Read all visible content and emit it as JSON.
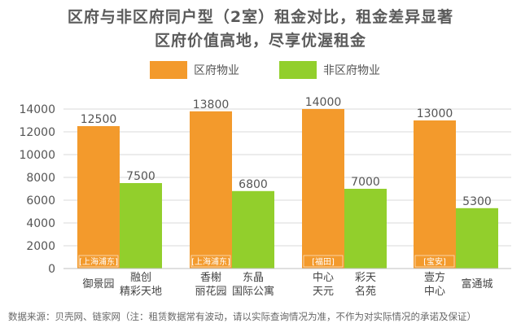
{
  "title_line1": "区府与非区府同户型（2室）租金对比，租金差异显著",
  "title_line2": "区府价值高地，尽享优渥租金",
  "source_note": "数据来源：贝壳网、链家网（注：租赁数据常有波动，请以实际查询情况为准，不作为对实际情况的承诺及保证）",
  "colors": {
    "orange": "#f39a2c",
    "green": "#92cf2c",
    "tag_bg": "#f7b86a",
    "grid": "#d9d9d9"
  },
  "chart_data": {
    "type": "bar",
    "title": "区府与非区府同户型（2室）租金对比，租金差异显著",
    "ylim": [
      0,
      14000
    ],
    "yticks": [
      0,
      2000,
      4000,
      6000,
      8000,
      10000,
      12000,
      14000
    ],
    "grid": true,
    "legend_position": "top",
    "series": [
      {
        "name": "区府物业",
        "values": [
          12500,
          13800,
          14000,
          13000
        ]
      },
      {
        "name": "非区府物业",
        "values": [
          7500,
          6800,
          7000,
          5300
        ]
      }
    ],
    "groups": [
      {
        "district": "[上海浦东]",
        "labels": [
          "御景园",
          "融创\n精彩天地"
        ]
      },
      {
        "district": "[上海浦东]",
        "labels": [
          "香榭\n丽花园",
          "东晶\n国际公寓"
        ]
      },
      {
        "district": "[福田]",
        "labels": [
          "中心\n天元",
          "彩天\n名苑"
        ]
      },
      {
        "district": "[宝安]",
        "labels": [
          "壹方\n中心",
          "富通城"
        ]
      }
    ]
  }
}
